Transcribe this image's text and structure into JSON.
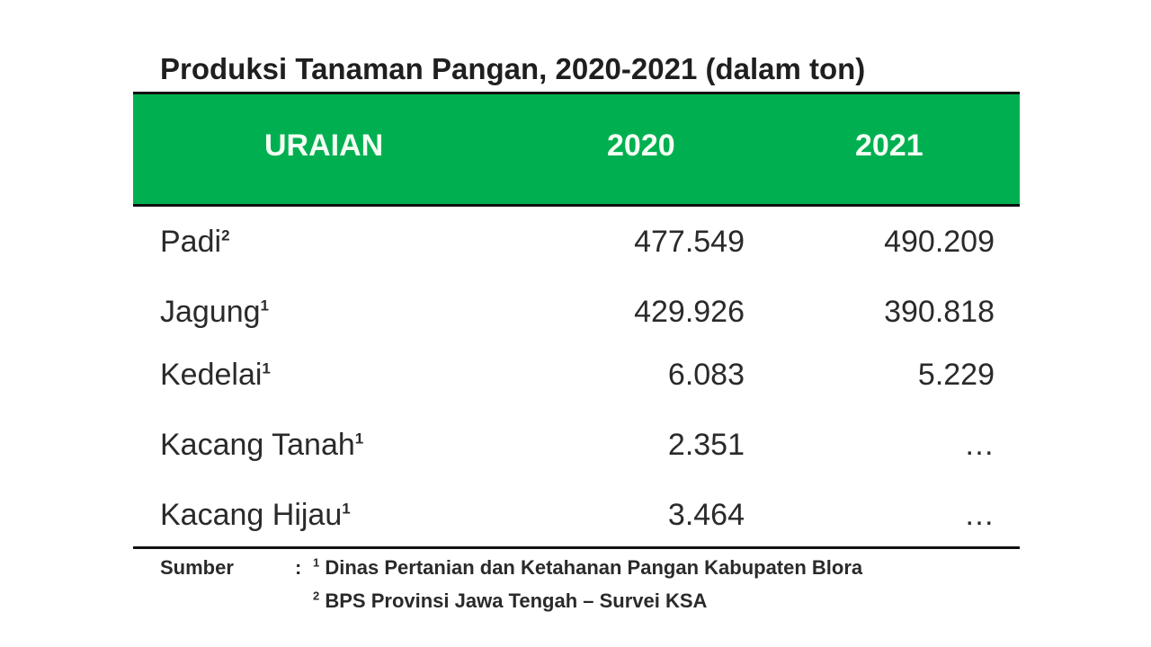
{
  "title": "Produksi Tanaman Pangan, 2020-2021 (dalam ton)",
  "table": {
    "headers": [
      "URAIAN",
      "2020",
      "2021"
    ],
    "rows": [
      {
        "label": "Padi",
        "sup": "2",
        "v2020": "477.549",
        "v2021": "490.209"
      },
      {
        "label": "Jagung",
        "sup": "1",
        "v2020": "429.926",
        "v2021": "390.818"
      },
      {
        "label": "Kedelai",
        "sup": "1",
        "v2020": "6.083",
        "v2021": "5.229"
      },
      {
        "label": "Kacang Tanah",
        "sup": "1",
        "v2020": "2.351",
        "v2021": "…"
      },
      {
        "label": "Kacang Hijau",
        "sup": "1",
        "v2020": "3.464",
        "v2021": "…"
      }
    ],
    "header_color": "#00b050"
  },
  "source": {
    "label": "Sumber",
    "colon": ":",
    "line1_sup": "1",
    "line1": "Dinas Pertanian dan Ketahanan Pangan  Kabupaten Blora",
    "line2_sup": "2",
    "line2": "BPS Provinsi Jawa Tengah – Survei KSA"
  }
}
